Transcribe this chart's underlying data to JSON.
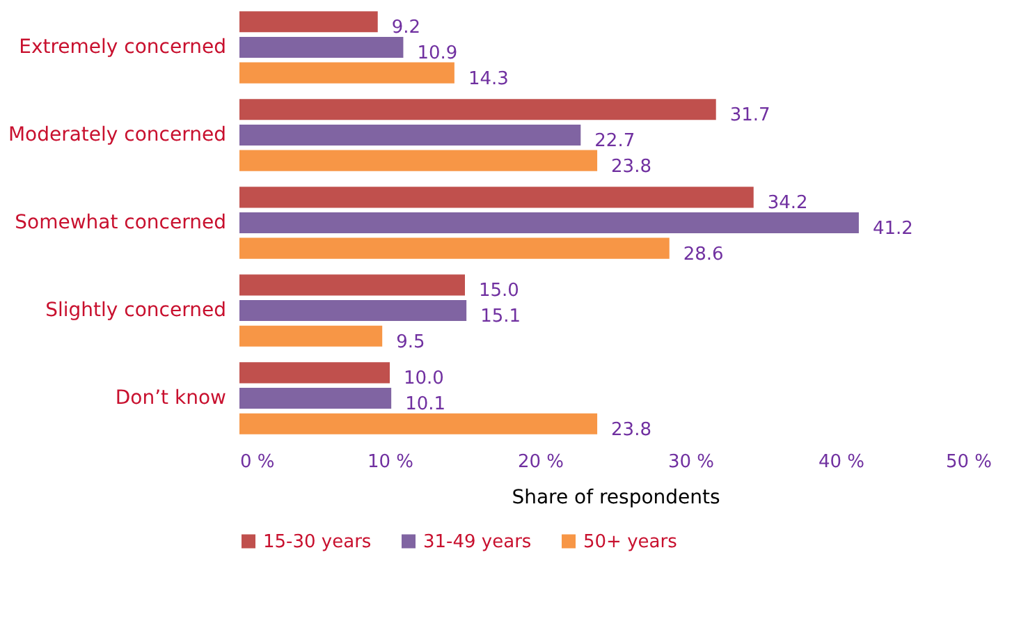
{
  "chart_data": {
    "type": "bar",
    "orientation": "horizontal",
    "xlabel": "Share of respondents",
    "categories": [
      "Extremely concerned",
      "Moderately concerned",
      "Somewhat concerned",
      "Slightly concerned",
      "Don’t know"
    ],
    "series": [
      {
        "name": "15-30 years",
        "color": "#c0504d",
        "values": [
          9.2,
          31.7,
          34.2,
          15.0,
          10.0
        ],
        "value_labels": [
          "9.2",
          "31.7",
          "34.2",
          "15.0",
          "10.0"
        ]
      },
      {
        "name": "31-49 years",
        "color": "#8064a2",
        "values": [
          10.9,
          22.7,
          41.2,
          15.1,
          10.1
        ],
        "value_labels": [
          "10.9",
          "22.7",
          "41.2",
          "15.1",
          "10.1"
        ]
      },
      {
        "name": "50+ years",
        "color": "#f79646",
        "values": [
          14.3,
          23.8,
          28.6,
          9.5,
          23.8
        ],
        "value_labels": [
          "14.3",
          "23.8",
          "28.6",
          "9.5",
          "23.8"
        ]
      }
    ],
    "xlim": [
      0,
      50
    ],
    "xticks": [
      {
        "value": 0,
        "label": "0 %"
      },
      {
        "value": 10,
        "label": "10 %"
      },
      {
        "value": 20,
        "label": "20 %"
      },
      {
        "value": 30,
        "label": "30 %"
      },
      {
        "value": 40,
        "label": "40 %"
      },
      {
        "value": 50,
        "label": "50 %"
      }
    ],
    "legend": "bottom",
    "grid": false
  }
}
